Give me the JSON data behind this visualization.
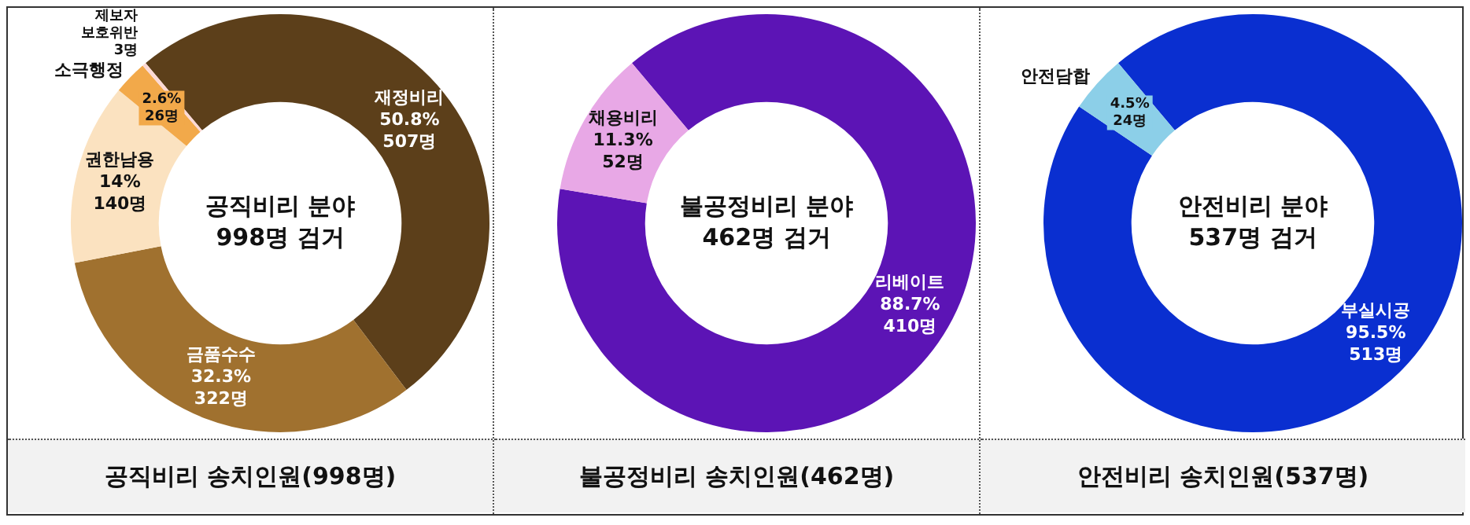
{
  "chart_data": [
    {
      "type": "donut",
      "title": "공직비리 분야\n998명 검거",
      "subtitle": "공직비리 송치인원(998명)",
      "categories": [
        "재정비리",
        "금품수수",
        "권한남용",
        "소극행정",
        "제보자\n보호위반"
      ],
      "values": [
        507,
        322,
        140,
        26,
        3
      ],
      "colors": [
        "#5c3f1a",
        "#a0712f",
        "#fbe2c0",
        "#f2a94a",
        "#fcd9d5"
      ],
      "value_labels": [
        "50.8%\n507명",
        "32.3%\n322명",
        "14%\n140명",
        "2.6%\n26명",
        "3명"
      ]
    },
    {
      "type": "donut",
      "title": "불공정비리 분야\n462명 검거",
      "subtitle": "불공정비리 송치인원(462명)",
      "categories": [
        "리베이트",
        "채용비리"
      ],
      "values": [
        410,
        52
      ],
      "colors": [
        "#5c14b5",
        "#e8a8e6"
      ],
      "value_labels": [
        "88.7%\n410명",
        "11.3%\n52명"
      ]
    },
    {
      "type": "donut",
      "title": "안전비리 분야\n537명 검거",
      "subtitle": "안전비리 송치인원(537명)",
      "categories": [
        "부실시공",
        "안전담합"
      ],
      "values": [
        513,
        24
      ],
      "colors": [
        "#0a2fd0",
        "#8ccfe8"
      ],
      "value_labels": [
        "95.5%\n513명",
        "4.5%\n24명"
      ]
    }
  ]
}
